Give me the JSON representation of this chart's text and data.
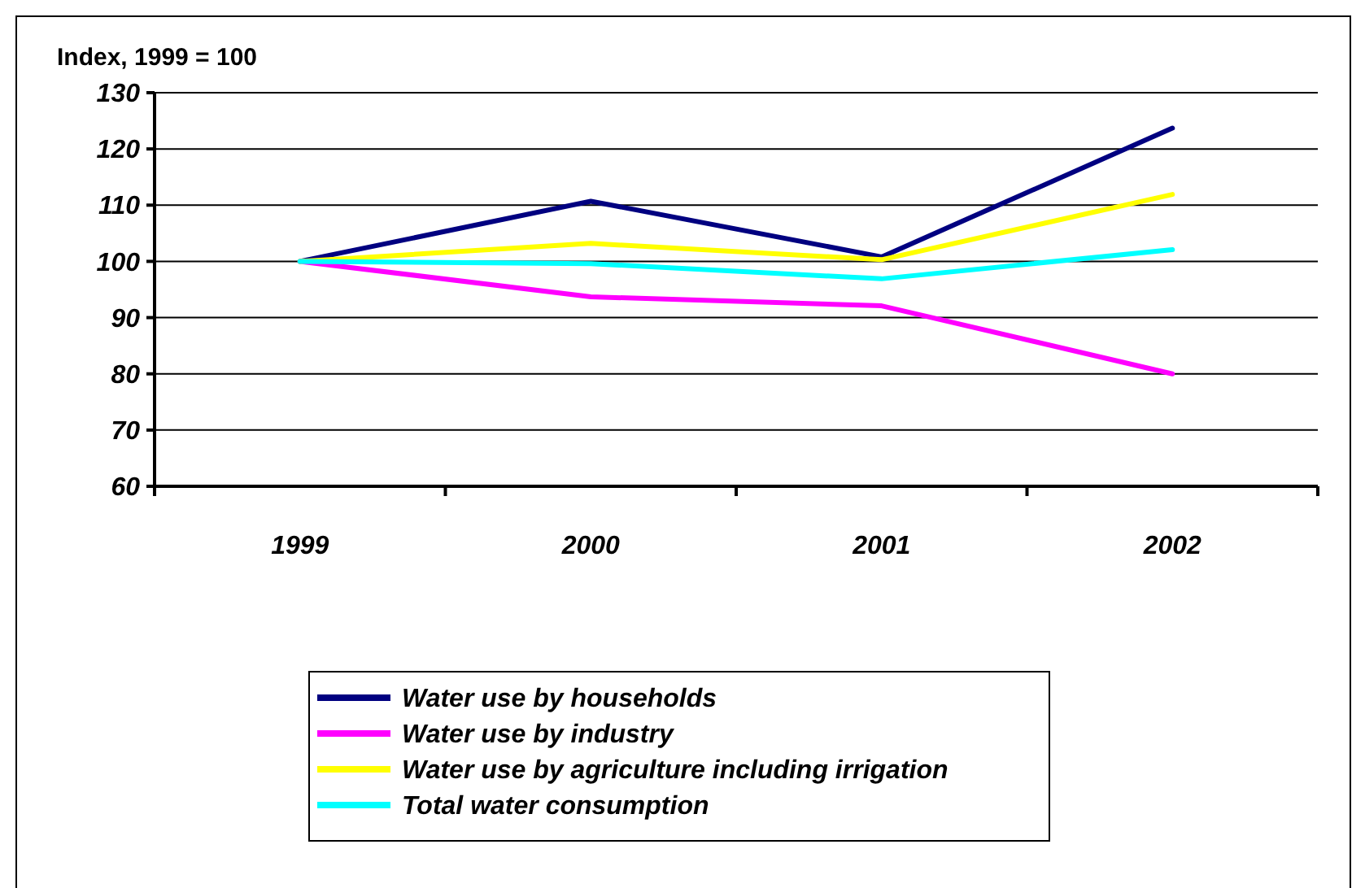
{
  "chart_data": {
    "type": "line",
    "title": "Index, 1999 = 100",
    "categories": [
      "1999",
      "2000",
      "2001",
      "2002"
    ],
    "series": [
      {
        "name": "Water use by households",
        "color": "#000080",
        "values": [
          100,
          110.7,
          100.8,
          123.7
        ]
      },
      {
        "name": "Water use by industry",
        "color": "#ff00ff",
        "values": [
          100,
          93.7,
          92.1,
          80
        ]
      },
      {
        "name": "Water use by agriculture including irrigation",
        "color": "#ffff00",
        "values": [
          100,
          103.2,
          100.3,
          111.9
        ]
      },
      {
        "name": "Total water consumption",
        "color": "#00ffff",
        "values": [
          100,
          99.6,
          96.9,
          102.1
        ]
      }
    ],
    "ylim": [
      60,
      130
    ],
    "yticks": [
      60,
      70,
      80,
      90,
      100,
      110,
      120,
      130
    ],
    "grid": "y",
    "legend": "bottom",
    "marker": "none",
    "line_style": "solid"
  }
}
